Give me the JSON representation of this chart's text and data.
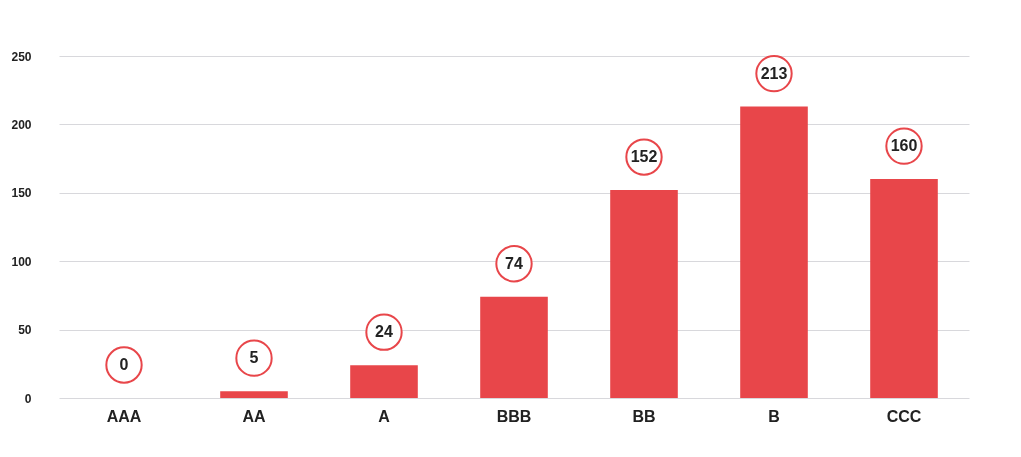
{
  "chart_data": {
    "type": "bar",
    "categories": [
      "AAA",
      "AA",
      "A",
      "BBB",
      "BB",
      "B",
      "CCC"
    ],
    "values": [
      0,
      5,
      24,
      74,
      152,
      213,
      160
    ],
    "color": "#e8464a",
    "ylim": [
      0,
      250
    ],
    "yticks": [
      0,
      50,
      100,
      150,
      200,
      250
    ],
    "grid": "y",
    "data_labels": true
  }
}
